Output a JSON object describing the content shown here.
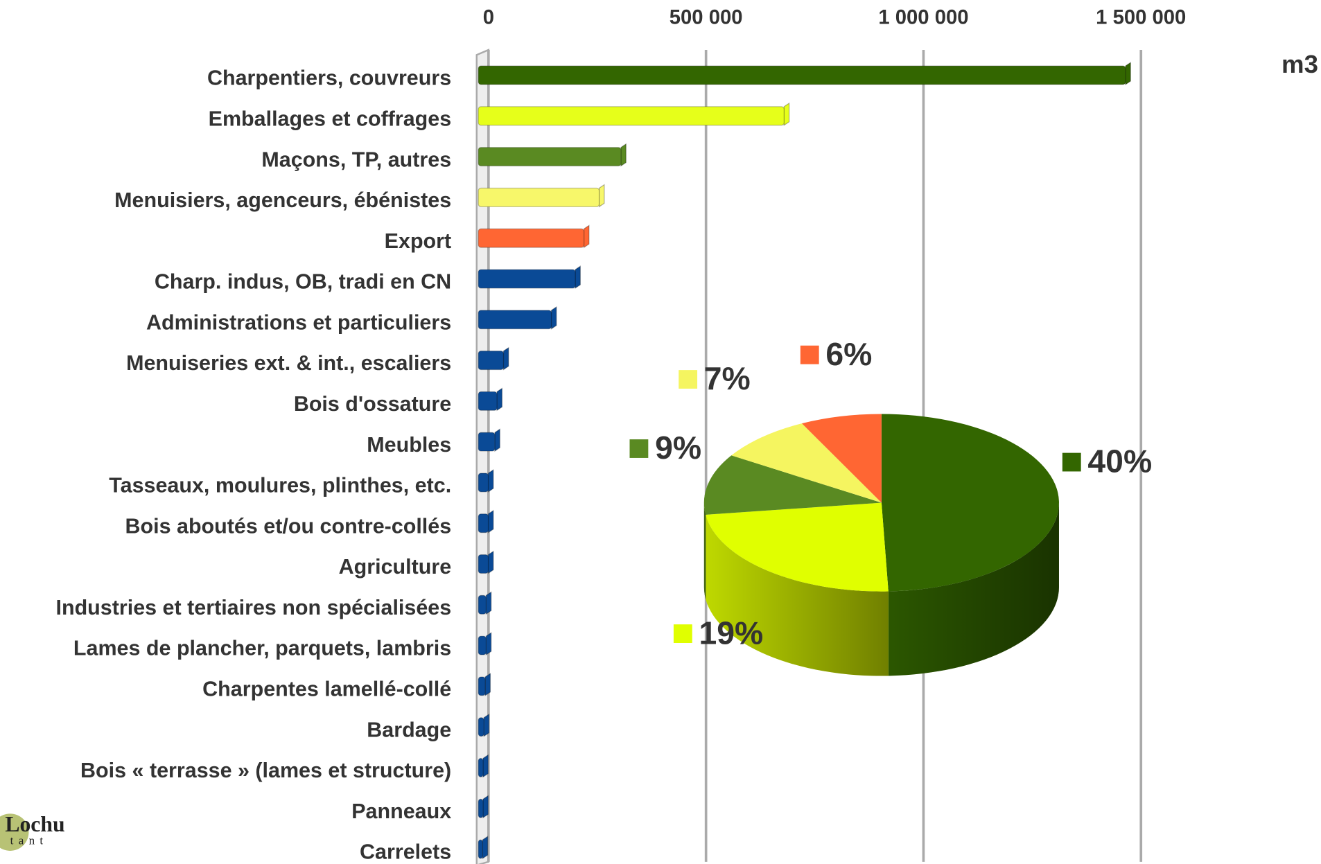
{
  "chart_data": [
    {
      "type": "barh",
      "unit": "m3",
      "categories": [
        "Charpentiers, couvreurs",
        "Emballages et coffrages",
        "Maçons, TP, autres",
        "Menuisiers, agenceurs, ébénistes",
        "Export",
        "Charp. indus, OB, tradi en CN",
        "Administrations et particuliers",
        "Menuiseries ext. & int., escaliers",
        "Bois d'ossature",
        "Meubles",
        "Tasseaux, moulures, plinthes, etc.",
        "Bois aboutés et/ou contre-collés",
        "Agriculture",
        "Industries et tertiaires non spécialisées",
        "Lames de plancher, parquets, lambris",
        "Charpentes lamellé-collé",
        "Bardage",
        "Bois « terrasse » (lames et structure)",
        "Panneaux",
        "Carrelets"
      ],
      "values": [
        1480000,
        695000,
        320000,
        270000,
        235000,
        215000,
        160000,
        50000,
        35000,
        30000,
        15000,
        15000,
        15000,
        10000,
        10000,
        8000,
        5000,
        3000,
        3000,
        2000
      ],
      "colors": [
        "#336600",
        "#e6ff1a",
        "#5a8a22",
        "#f7f76a",
        "#ff6633",
        "#0a4a96",
        "#0a4a96",
        "#0a4a96",
        "#0a4a96",
        "#0a4a96",
        "#0a4a96",
        "#0a4a96",
        "#0a4a96",
        "#0a4a96",
        "#0a4a96",
        "#0a4a96",
        "#0a4a96",
        "#0a4a96",
        "#0a4a96",
        "#0a4a96"
      ],
      "xlim": [
        0,
        1500000
      ],
      "xticks": [
        0,
        {
          "value": 500000,
          "label": "500 000"
        },
        {
          "value": 1000000,
          "label": "1 000 000"
        },
        {
          "value": 1500000,
          "label": "1 500 000"
        }
      ],
      "grid": true
    },
    {
      "type": "pie",
      "values": [
        40,
        19,
        9,
        7,
        6
      ],
      "value_labels": [
        "40%",
        "19%",
        "9%",
        "7%",
        "6%"
      ],
      "colors": [
        "#336600",
        "#e0ff00",
        "#5a8a22",
        "#f5f560",
        "#ff6633"
      ]
    }
  ],
  "logo": {
    "name": "Lochu",
    "sub": "tant"
  }
}
